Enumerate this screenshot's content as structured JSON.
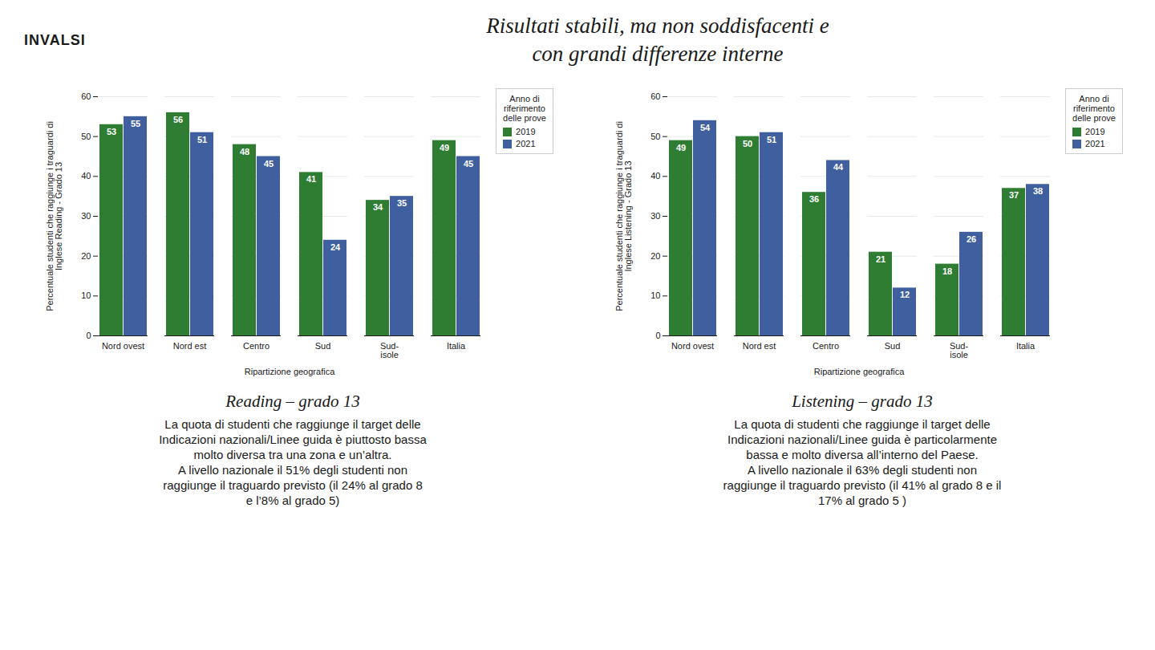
{
  "title": "Risultati stabili, ma non soddisfacenti e\ncon grandi differenze interne",
  "annotations": [
    "INVALSI"
  ],
  "chart_data": [
    {
      "type": "bar",
      "title": "Reading – grado 13",
      "xlabel": "Ripartizione geografica",
      "ylabel": "Percentuale studenti che raggiunge i traguardi di\nInglese Reading - Grado 13",
      "legend_title": "Anno di\nriferimento\ndelle prove",
      "categories": [
        "Nord ovest",
        "Nord est",
        "Centro",
        "Sud",
        "Sud-\nisole",
        "Italia"
      ],
      "series": [
        {
          "name": "2019",
          "color": "#2e7d32",
          "values": [
            53,
            56,
            48,
            41,
            34,
            49
          ]
        },
        {
          "name": "2021",
          "color": "#3f5f9e",
          "values": [
            55,
            51,
            45,
            24,
            35,
            45
          ]
        }
      ],
      "ylim": [
        0,
        60
      ],
      "yticks": [
        0,
        10,
        20,
        30,
        40,
        50,
        60
      ],
      "grid": true,
      "legend": "upper right",
      "data_labels": true,
      "annotations": [
        "La quota di studenti che raggiunge il target delle",
        "Indicazioni nazionali/Linee guida è piuttosto bassa",
        "molto diversa tra una zona e un’altra.",
        "A livello nazionale il 51% degli studenti non",
        "raggiunge il traguardo previsto (il 24% al grado 8",
        "e l’8% al grado 5)"
      ]
    },
    {
      "type": "bar",
      "title": "Listening – grado 13",
      "xlabel": "Ripartizione geografica",
      "ylabel": "Percentuale studenti che raggiunge i traguardi di\nInglese Listening - Grado 13",
      "legend_title": "Anno di\nriferimento\ndelle prove",
      "categories": [
        "Nord ovest",
        "Nord est",
        "Centro",
        "Sud",
        "Sud-\nisole",
        "Italia"
      ],
      "series": [
        {
          "name": "2019",
          "color": "#2e7d32",
          "values": [
            49,
            50,
            36,
            21,
            18,
            37
          ]
        },
        {
          "name": "2021",
          "color": "#3f5f9e",
          "values": [
            54,
            51,
            44,
            12,
            26,
            38
          ]
        }
      ],
      "ylim": [
        0,
        60
      ],
      "yticks": [
        0,
        10,
        20,
        30,
        40,
        50,
        60
      ],
      "grid": true,
      "legend": "upper right",
      "data_labels": true,
      "annotations": [
        "La quota di studenti che raggiunge il target delle",
        "Indicazioni nazionali/Linee guida è particolarmente",
        "bassa e molto diversa all’interno del Paese.",
        "A livello nazionale il 63% degli studenti non",
        "raggiunge il traguardo previsto (il 41% al grado 8 e il",
        "17% al grado 5 )"
      ]
    }
  ]
}
